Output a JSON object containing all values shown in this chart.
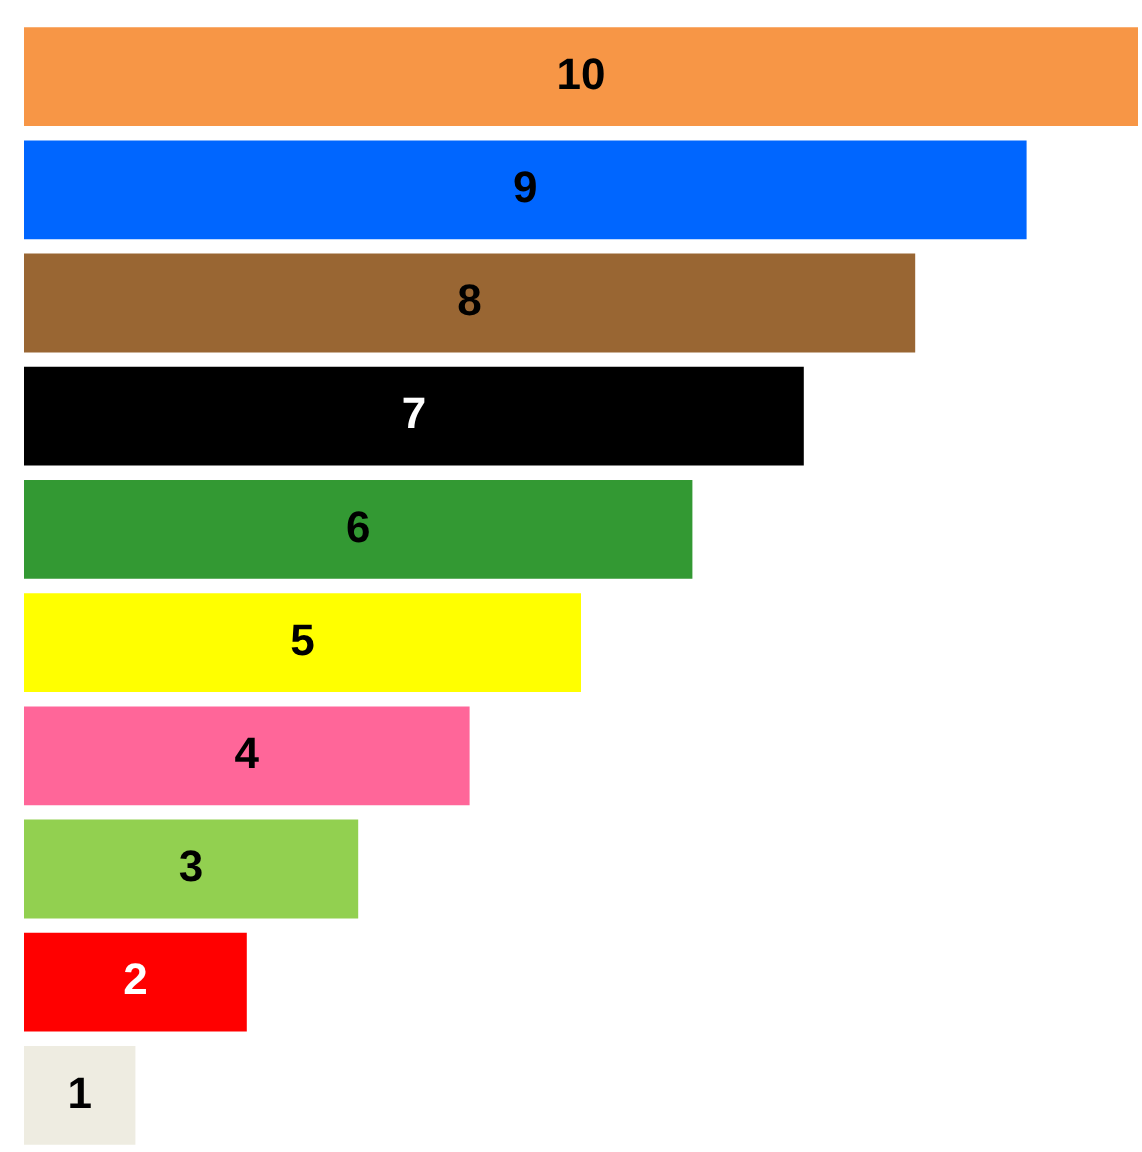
{
  "chart_data": {
    "type": "bar",
    "orientation": "horizontal",
    "categories": [
      null,
      null,
      null,
      null,
      null,
      null,
      null,
      null,
      null,
      null
    ],
    "values": [
      10,
      9,
      8,
      7,
      6,
      5,
      4,
      3,
      2,
      1
    ],
    "colors": [
      "#f79646",
      "#0066ff",
      "#996633",
      "#000000",
      "#339933",
      "#ffff00",
      "#ff6699",
      "#92d050",
      "#ff0000",
      "#eeece1"
    ],
    "data_labels": true,
    "legend": false
  }
}
